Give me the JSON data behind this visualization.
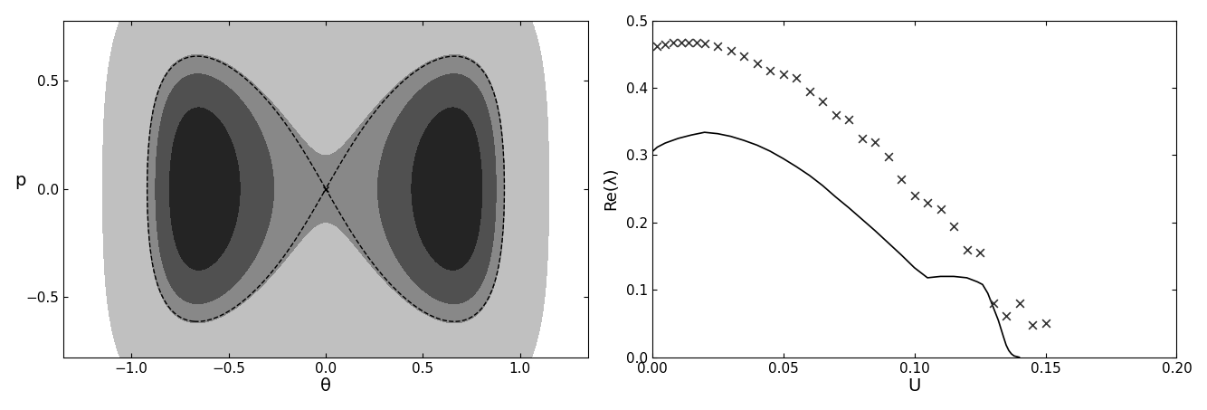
{
  "left_panel": {
    "xlabel": "θ",
    "ylabel": "p",
    "xlim": [
      -1.35,
      1.35
    ],
    "ylim": [
      -0.78,
      0.78
    ],
    "xticks": [
      -1.0,
      -0.5,
      0.0,
      0.5,
      1.0
    ],
    "yticks": [
      -0.5,
      0.0,
      0.5
    ],
    "color_light": "#c0c0c0",
    "color_mid": "#888888",
    "color_dark": "#505050",
    "color_darkest": "#242424",
    "bg_color": "#ffffff"
  },
  "right_panel": {
    "xlabel": "U",
    "ylabel": "Re(λ)",
    "xlim": [
      0.0,
      0.2
    ],
    "ylim": [
      0.0,
      0.5
    ],
    "xticks": [
      0.0,
      0.05,
      0.1,
      0.15,
      0.2
    ],
    "yticks": [
      0.0,
      0.1,
      0.2,
      0.3,
      0.4,
      0.5
    ],
    "line_color": "#000000",
    "marker_color": "#333333",
    "bg_color": "#ffffff",
    "scatter_x": [
      0.002,
      0.005,
      0.008,
      0.011,
      0.014,
      0.017,
      0.02,
      0.025,
      0.03,
      0.035,
      0.04,
      0.045,
      0.05,
      0.055,
      0.06,
      0.065,
      0.07,
      0.075,
      0.08,
      0.085,
      0.09,
      0.095,
      0.1,
      0.105,
      0.11,
      0.115,
      0.12,
      0.125,
      0.13,
      0.135,
      0.14,
      0.145,
      0.15
    ],
    "scatter_y": [
      0.462,
      0.465,
      0.467,
      0.467,
      0.467,
      0.467,
      0.466,
      0.462,
      0.455,
      0.447,
      0.437,
      0.425,
      0.42,
      0.415,
      0.395,
      0.38,
      0.36,
      0.353,
      0.325,
      0.32,
      0.298,
      0.265,
      0.24,
      0.23,
      0.22,
      0.195,
      0.16,
      0.155,
      0.08,
      0.062,
      0.08,
      0.048,
      0.05
    ],
    "line_x": [
      0.0,
      0.002,
      0.005,
      0.01,
      0.015,
      0.02,
      0.025,
      0.03,
      0.035,
      0.04,
      0.045,
      0.05,
      0.055,
      0.06,
      0.065,
      0.07,
      0.075,
      0.08,
      0.085,
      0.09,
      0.095,
      0.1,
      0.105,
      0.11,
      0.115,
      0.12,
      0.122,
      0.124,
      0.126,
      0.128,
      0.13,
      0.132,
      0.134,
      0.135,
      0.136,
      0.137,
      0.138,
      0.139,
      0.14
    ],
    "line_y": [
      0.305,
      0.312,
      0.318,
      0.325,
      0.33,
      0.334,
      0.332,
      0.328,
      0.322,
      0.315,
      0.306,
      0.295,
      0.283,
      0.27,
      0.255,
      0.238,
      0.222,
      0.205,
      0.188,
      0.17,
      0.152,
      0.133,
      0.118,
      0.12,
      0.12,
      0.118,
      0.115,
      0.112,
      0.108,
      0.095,
      0.075,
      0.055,
      0.03,
      0.018,
      0.01,
      0.005,
      0.002,
      0.001,
      0.0
    ]
  }
}
